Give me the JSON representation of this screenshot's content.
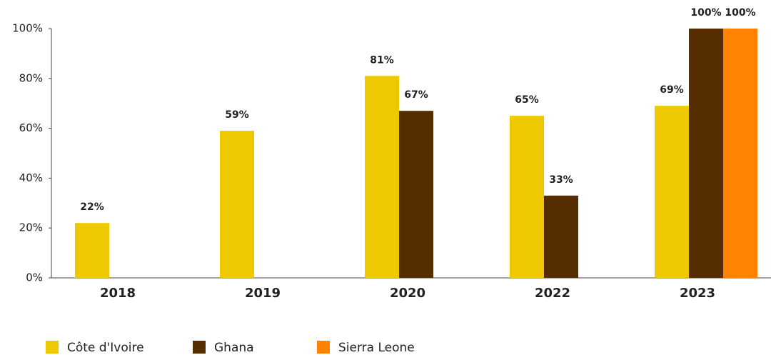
{
  "chart_data": {
    "type": "bar",
    "categories": [
      "2018",
      "2019",
      "2020",
      "2022",
      "2023"
    ],
    "series": [
      {
        "name": "Côte d'Ivoire",
        "color": "#eec800",
        "values": [
          22,
          59,
          81,
          65,
          69
        ],
        "value_labels": [
          "22%",
          "59%",
          "81%",
          "65%",
          "69%"
        ]
      },
      {
        "name": "Ghana",
        "color": "#552d00",
        "values": [
          null,
          null,
          67,
          33,
          100
        ],
        "value_labels": [
          null,
          null,
          "67%",
          "33%",
          "100%"
        ]
      },
      {
        "name": "Sierra Leone",
        "color": "#ff8200",
        "values": [
          null,
          null,
          null,
          null,
          100
        ],
        "value_labels": [
          null,
          null,
          null,
          null,
          "100%"
        ]
      }
    ],
    "ylim": [
      0,
      100
    ],
    "yticks": [
      {
        "value": 0,
        "label": "0%"
      },
      {
        "value": 20,
        "label": "20%"
      },
      {
        "value": 40,
        "label": "40%"
      },
      {
        "value": 60,
        "label": "60%"
      },
      {
        "value": 80,
        "label": "80%"
      },
      {
        "value": 100,
        "label": "100%"
      }
    ],
    "grid": false,
    "legend": "bottom-left"
  }
}
